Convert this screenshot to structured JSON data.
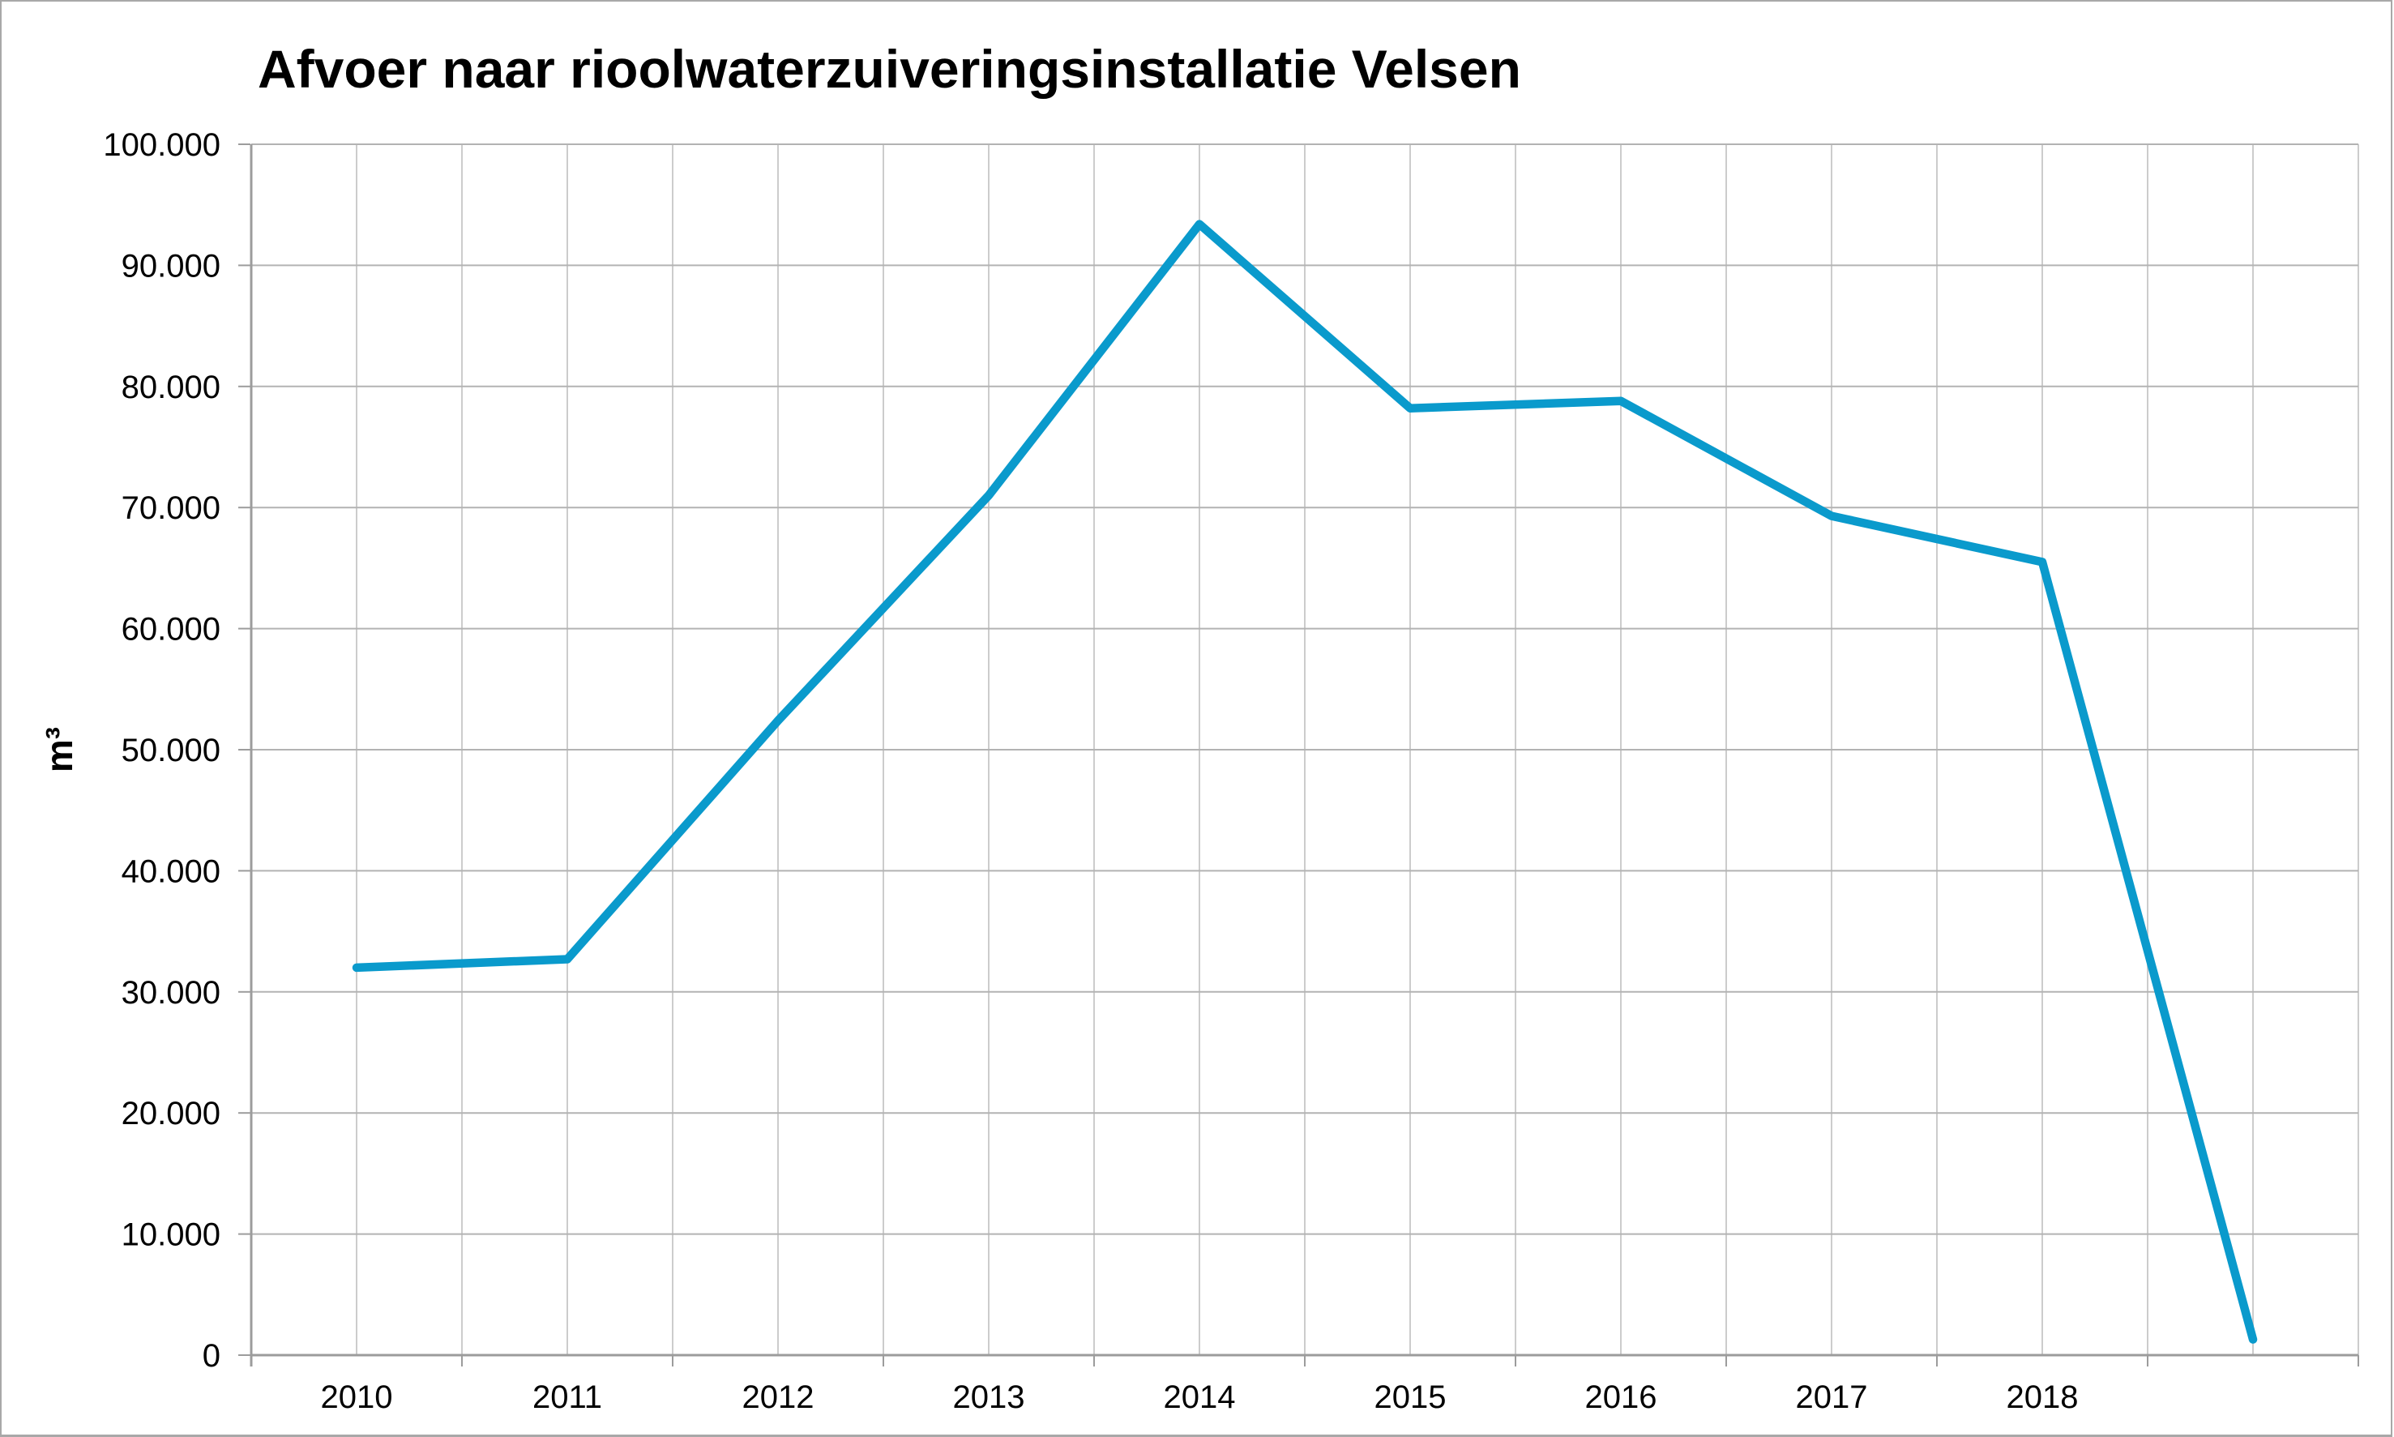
{
  "frame": {
    "border_color": "#a8a8a8",
    "background_color": "#ffffff"
  },
  "chart_data": {
    "type": "line",
    "title": "Afvoer naar rioolwaterzuiveringsinstallatie Velsen",
    "xlabel": "",
    "ylabel": "m³",
    "categories": [
      "2010",
      "2011",
      "2012",
      "2013",
      "2014",
      "2015",
      "2016",
      "2017",
      "2018",
      ""
    ],
    "series": [
      {
        "name": "",
        "color": "#0a9acc",
        "values": [
          32000,
          32700,
          52400,
          71000,
          93400,
          78200,
          78800,
          69300,
          65500,
          1300
        ]
      }
    ],
    "ylim": [
      0,
      100000
    ],
    "ytick_step": 10000,
    "y_tick_labels": [
      "0",
      "10.000",
      "20.000",
      "30.000",
      "40.000",
      "50.000",
      "60.000",
      "70.000",
      "80.000",
      "90.000",
      "100.000"
    ],
    "grid": {
      "horizontal": true,
      "vertical": true,
      "vertical_lines_per_category": 2
    },
    "legend": "none",
    "colors": {
      "vertical_gridline": "#cccccc",
      "horizontal_gridline": "#b3b3b3",
      "axis": "#9c9c9c",
      "tick_label_text": "#000000"
    }
  }
}
